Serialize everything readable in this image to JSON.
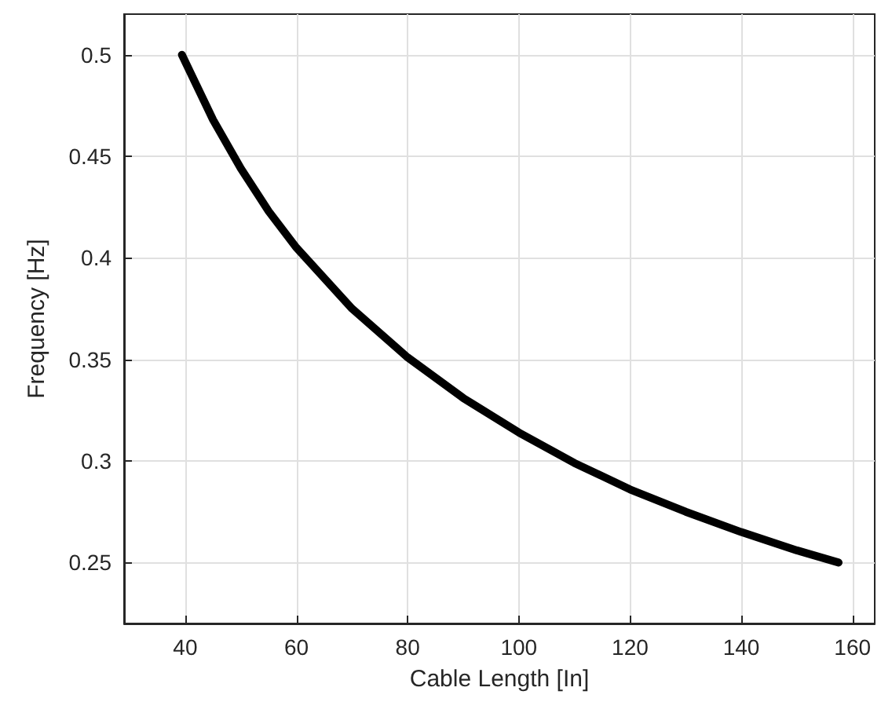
{
  "chart_data": {
    "type": "line",
    "xlabel": "Cable Length [In]",
    "ylabel": "Frequency [Hz]",
    "x": [
      39.4,
      45,
      50,
      55,
      60,
      70,
      80,
      90,
      100,
      110,
      120,
      130,
      140,
      150,
      157.5
    ],
    "series": [
      {
        "color": "#000000",
        "values": [
          0.5,
          0.468,
          0.444,
          0.423,
          0.405,
          0.375,
          0.351,
          0.331,
          0.314,
          0.299,
          0.286,
          0.275,
          0.265,
          0.256,
          0.25
        ]
      }
    ],
    "xlim": [
      29,
      164
    ],
    "xticks": [
      40,
      60,
      80,
      100,
      120,
      140,
      160
    ],
    "ylim": [
      0.22,
      0.52
    ],
    "yticks": [
      0.25,
      0.3,
      0.35,
      0.4,
      0.45,
      0.5
    ],
    "grid": true,
    "marker": "none",
    "line_style": "solid"
  }
}
